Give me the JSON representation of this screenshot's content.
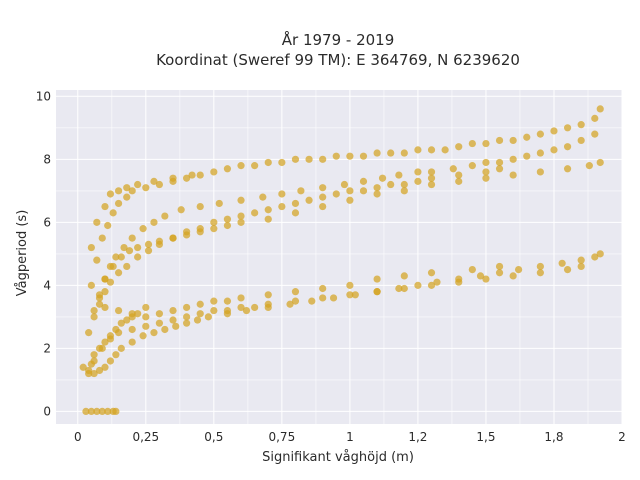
{
  "chart_data": {
    "type": "scatter",
    "title": "År 1979 - 2019",
    "subtitle": "Koordinat (Sweref 99 TM): E 364769, N 6239620",
    "xlabel": "Signifikant våghöjd (m)",
    "ylabel": "Vågperiod (s)",
    "xlim": [
      -0.08,
      2.0
    ],
    "ylim": [
      -0.4,
      10.2
    ],
    "x_ticks": [
      0,
      0.25,
      0.5,
      0.75,
      1,
      1.25,
      1.5,
      1.75,
      2
    ],
    "x_tick_labels": [
      "0",
      "0,25",
      "0,5",
      "0,75",
      "1",
      "1,2",
      "1,5",
      "1,8",
      "2"
    ],
    "y_ticks": [
      0,
      2,
      4,
      6,
      8,
      10
    ],
    "y_tick_labels": [
      "0",
      "2",
      "4",
      "6",
      "8",
      "10"
    ],
    "grid": true,
    "legend": "none",
    "marker_color": "#d4a322",
    "background_color": "#e9e9f1",
    "series": [
      {
        "x": [
          0.03,
          0.05,
          0.07,
          0.09,
          0.11,
          0.13,
          0.14,
          0.04,
          0.05,
          0.06,
          0.08,
          0.1,
          0.12,
          0.14,
          0.16,
          0.18,
          0.2,
          0.22,
          0.25,
          0.04,
          0.06,
          0.08,
          0.1,
          0.12,
          0.15,
          0.18,
          0.22,
          0.26,
          0.3,
          0.35,
          0.4,
          0.45,
          0.5,
          0.55,
          0.6,
          0.65,
          0.7,
          0.75,
          0.8,
          0.85,
          0.9,
          0.95,
          1.0,
          1.05,
          1.1,
          1.15,
          1.2,
          1.25,
          1.3,
          1.4,
          1.5,
          1.55,
          0.05,
          0.07,
          0.09,
          0.11,
          0.13,
          0.15,
          0.18,
          0.2,
          0.25,
          0.3,
          0.35,
          0.4,
          0.45,
          0.5,
          0.55,
          0.6,
          0.65,
          0.7,
          0.75,
          0.8,
          0.85,
          0.9,
          0.95,
          1.0,
          1.05,
          1.1,
          1.15,
          1.2,
          1.25,
          1.3,
          1.35,
          1.4,
          1.45,
          1.5,
          1.55,
          1.6,
          1.65,
          1.7,
          1.75,
          1.8,
          1.85,
          1.9,
          1.92,
          0.06,
          0.09,
          0.12,
          0.15,
          0.2,
          0.25,
          0.3,
          0.35,
          0.4,
          0.45,
          0.5,
          0.55,
          0.6,
          0.65,
          0.7,
          0.8,
          0.9,
          1.0,
          1.1,
          1.2,
          1.3,
          1.4,
          1.5,
          1.6,
          1.7,
          1.8,
          1.85,
          0.08,
          0.1,
          0.13,
          0.16,
          0.19,
          0.22,
          0.26,
          0.3,
          0.35,
          0.4,
          0.45,
          0.5,
          0.55,
          0.6,
          0.7,
          0.8,
          0.9,
          1.0,
          1.1,
          1.2,
          1.3,
          1.4,
          1.5,
          1.6,
          1.7,
          1.8,
          1.88,
          1.92,
          0.05,
          0.07,
          0.1,
          0.12,
          0.15,
          0.18,
          0.22,
          0.28,
          0.35,
          0.42,
          0.1,
          0.15,
          0.2,
          0.25,
          0.3,
          0.35,
          0.4,
          0.45,
          0.5,
          0.55,
          0.6,
          0.7,
          0.8,
          0.9,
          1.0,
          1.1,
          1.2,
          1.3,
          1.45,
          1.55,
          0.06,
          0.08,
          0.1,
          0.12,
          0.14,
          0.17,
          0.2,
          0.24,
          0.28,
          0.32,
          0.38,
          0.45,
          0.52,
          0.6,
          0.68,
          0.75,
          0.82,
          0.9,
          0.98,
          1.05,
          1.12,
          1.18,
          1.25,
          1.3,
          1.38,
          1.45,
          1.5,
          1.55,
          1.6,
          1.65,
          1.7,
          1.75,
          1.8,
          1.85,
          1.9,
          0.02,
          0.04,
          0.06,
          0.08,
          0.1,
          0.12,
          0.14,
          0.16,
          0.2,
          0.24,
          0.28,
          0.32,
          0.36,
          0.4,
          0.44,
          0.48,
          0.55,
          0.62,
          0.7,
          0.78,
          0.86,
          0.94,
          1.02,
          1.1,
          1.18,
          1.25,
          1.32,
          1.4,
          1.48,
          1.55,
          1.62,
          1.7,
          1.78,
          1.85,
          1.9,
          1.92
        ],
        "y": [
          0.0,
          0.0,
          0.0,
          0.0,
          0.0,
          0.0,
          0.0,
          1.2,
          1.5,
          1.8,
          2.0,
          2.2,
          2.4,
          2.6,
          2.8,
          2.9,
          3.0,
          3.1,
          3.3,
          2.5,
          3.0,
          3.4,
          3.8,
          4.1,
          4.4,
          4.6,
          4.9,
          5.1,
          5.3,
          5.5,
          5.7,
          5.8,
          6.0,
          6.1,
          6.2,
          6.3,
          6.4,
          6.5,
          6.6,
          6.7,
          6.8,
          6.9,
          7.0,
          7.0,
          7.1,
          7.2,
          7.2,
          7.3,
          7.4,
          7.5,
          7.6,
          7.7,
          4.0,
          4.8,
          5.5,
          5.9,
          6.3,
          6.6,
          6.8,
          7.0,
          7.1,
          7.2,
          7.3,
          7.4,
          7.5,
          7.6,
          7.7,
          7.8,
          7.8,
          7.9,
          7.9,
          8.0,
          8.0,
          8.0,
          8.1,
          8.1,
          8.1,
          8.2,
          8.2,
          8.2,
          8.3,
          8.3,
          8.3,
          8.4,
          8.5,
          8.5,
          8.6,
          8.6,
          8.7,
          8.8,
          8.9,
          9.0,
          9.1,
          9.3,
          9.6,
          1.6,
          2.0,
          2.3,
          2.5,
          2.6,
          2.7,
          2.8,
          2.9,
          3.0,
          3.1,
          3.2,
          3.2,
          3.3,
          3.3,
          3.4,
          3.5,
          3.6,
          3.7,
          3.8,
          3.9,
          4.0,
          4.1,
          4.2,
          4.3,
          4.4,
          4.5,
          4.6,
          3.6,
          4.2,
          4.6,
          4.9,
          5.1,
          5.2,
          5.3,
          5.4,
          5.5,
          5.6,
          5.7,
          5.8,
          5.9,
          6.0,
          6.1,
          6.3,
          6.5,
          6.7,
          6.9,
          7.0,
          7.2,
          7.3,
          7.4,
          7.5,
          7.6,
          7.7,
          7.8,
          7.9,
          5.2,
          6.0,
          6.5,
          6.9,
          7.0,
          7.1,
          7.2,
          7.3,
          7.4,
          7.5,
          3.3,
          3.2,
          3.1,
          3.0,
          3.1,
          3.2,
          3.3,
          3.4,
          3.5,
          3.5,
          3.6,
          3.7,
          3.8,
          3.9,
          4.0,
          4.2,
          4.3,
          4.4,
          4.5,
          4.6,
          3.2,
          3.7,
          4.2,
          4.6,
          4.9,
          5.2,
          5.5,
          5.8,
          6.0,
          6.2,
          6.4,
          6.5,
          6.6,
          6.7,
          6.8,
          6.9,
          7.0,
          7.1,
          7.2,
          7.3,
          7.4,
          7.5,
          7.6,
          7.6,
          7.7,
          7.8,
          7.9,
          7.9,
          8.0,
          8.1,
          8.2,
          8.3,
          8.4,
          8.6,
          8.8,
          1.4,
          1.3,
          1.2,
          1.3,
          1.4,
          1.6,
          1.8,
          2.0,
          2.2,
          2.4,
          2.5,
          2.6,
          2.7,
          2.8,
          2.9,
          3.0,
          3.1,
          3.2,
          3.3,
          3.4,
          3.5,
          3.6,
          3.7,
          3.8,
          3.9,
          4.0,
          4.1,
          4.2,
          4.3,
          4.4,
          4.5,
          4.6,
          4.7,
          4.8,
          4.9,
          5.0
        ]
      }
    ]
  }
}
